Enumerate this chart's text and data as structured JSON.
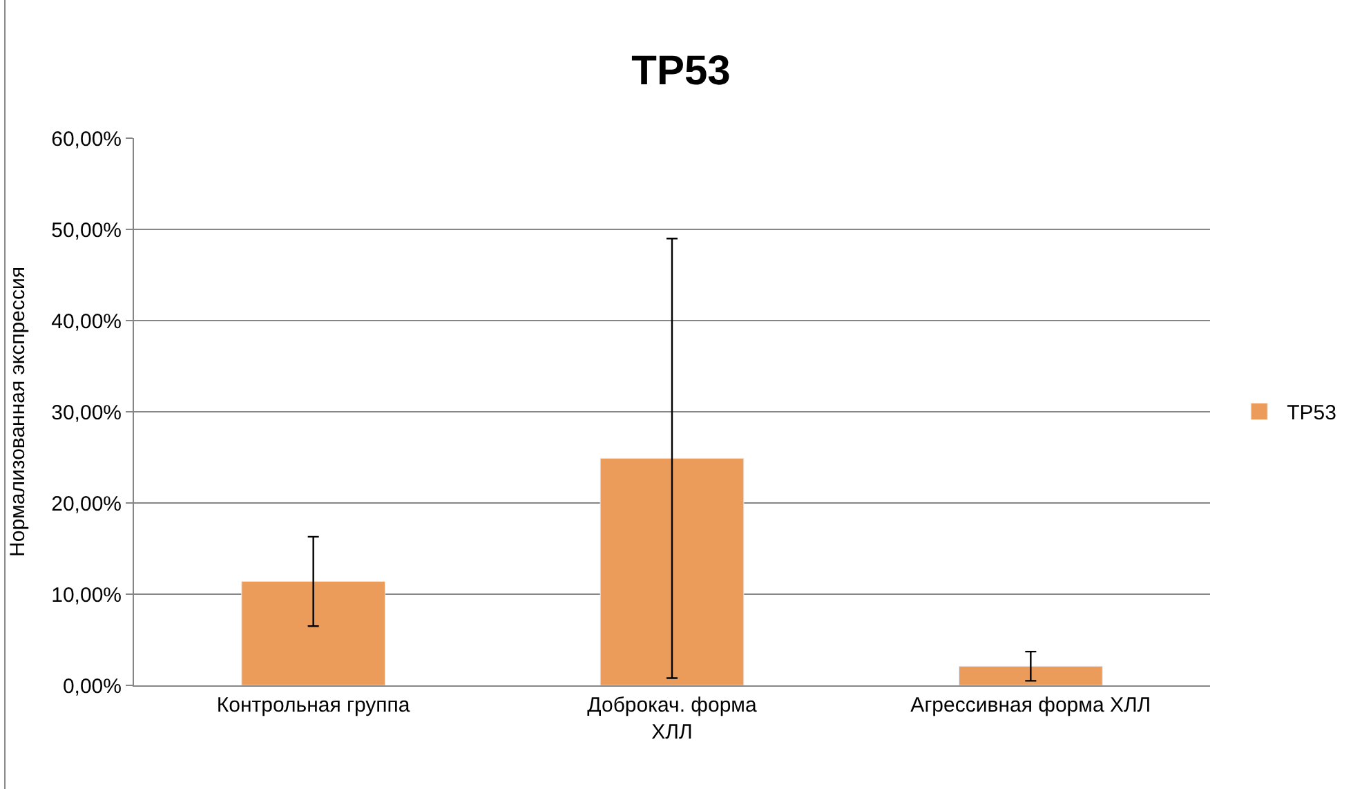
{
  "chart_data": {
    "type": "bar",
    "title": "TP53",
    "ylabel": "Нормализованная экспрессия",
    "categories": [
      "Контрольная группа",
      "Доброкач. форма\nХЛЛ",
      "Агрессивная форма ХЛЛ"
    ],
    "series": [
      {
        "name": "TP53",
        "color": "#eb9c5a",
        "values": [
          11.4,
          24.9,
          2.1
        ],
        "errors": [
          4.9,
          24.1,
          1.6
        ]
      }
    ],
    "ylim": [
      0,
      60
    ],
    "yticks": [
      {
        "value": 0,
        "label": "0,00%"
      },
      {
        "value": 10,
        "label": "10,00%"
      },
      {
        "value": 20,
        "label": "20,00%"
      },
      {
        "value": 30,
        "label": "30,00%"
      },
      {
        "value": 40,
        "label": "40,00%"
      },
      {
        "value": 50,
        "label": "50,00%"
      },
      {
        "value": 60,
        "label": "60,00%"
      }
    ],
    "grid": "y",
    "legend": "right"
  }
}
